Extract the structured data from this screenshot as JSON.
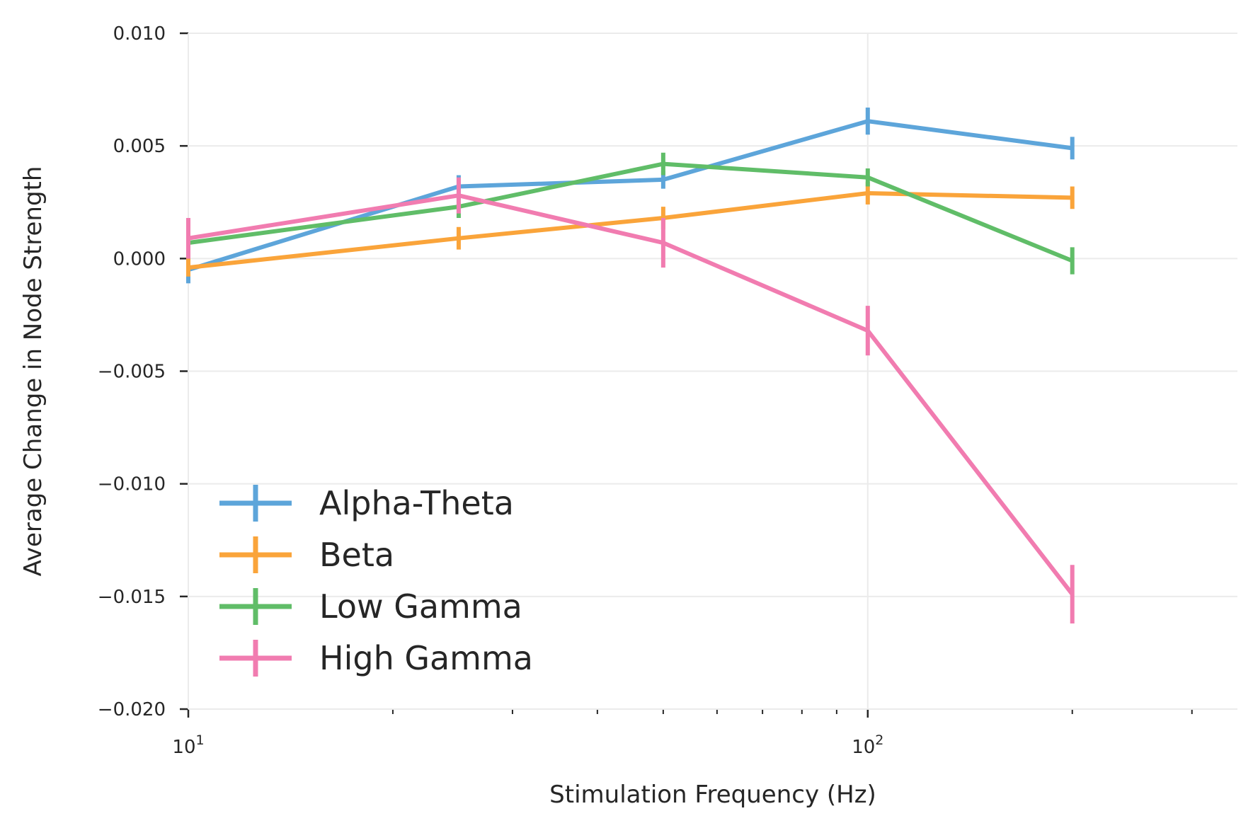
{
  "chart_data": {
    "type": "line",
    "xlabel": "Stimulation Frequency (Hz)",
    "ylabel": "Average Change in Node Strength",
    "x_scale": "log",
    "xlim": [
      10,
      350
    ],
    "ylim": [
      -0.02,
      0.01
    ],
    "y_ticks": [
      0.01,
      0.005,
      0.0,
      -0.005,
      -0.01,
      -0.015,
      -0.02
    ],
    "y_tick_labels": [
      "0.010",
      "0.005",
      "0.000",
      "−0.005",
      "−0.010",
      "−0.015",
      "−0.020"
    ],
    "x_major_ticks": [
      10,
      100
    ],
    "x_major_tick_labels": [
      {
        "base": "10",
        "exp": "1"
      },
      {
        "base": "10",
        "exp": "2"
      }
    ],
    "x_minor_ticks": [
      20,
      30,
      40,
      50,
      60,
      70,
      80,
      90,
      200,
      300
    ],
    "grid": true,
    "legend_placement": "lower-left",
    "x": [
      10,
      25,
      50,
      100,
      200
    ],
    "series": [
      {
        "name": "Alpha-Theta",
        "color": "#5da5da",
        "values": [
          -0.0005,
          0.0032,
          0.0035,
          0.0061,
          0.0049
        ],
        "errors": [
          0.0006,
          0.0005,
          0.0004,
          0.0006,
          0.0005
        ]
      },
      {
        "name": "Beta",
        "color": "#faa43a",
        "values": [
          -0.0004,
          0.0009,
          0.0018,
          0.0029,
          0.0027
        ],
        "errors": [
          0.0004,
          0.0005,
          0.0005,
          0.0005,
          0.0005
        ]
      },
      {
        "name": "Low Gamma",
        "color": "#60bd68",
        "values": [
          0.0007,
          0.0023,
          0.0042,
          0.0036,
          -0.0001
        ],
        "errors": [
          0.0005,
          0.0005,
          0.0005,
          0.0004,
          0.0006
        ]
      },
      {
        "name": "High Gamma",
        "color": "#f17cb0",
        "values": [
          0.0009,
          0.0028,
          0.0007,
          -0.0032,
          -0.0149
        ],
        "errors": [
          0.0009,
          0.0008,
          0.0011,
          0.0011,
          0.0013
        ]
      }
    ]
  }
}
